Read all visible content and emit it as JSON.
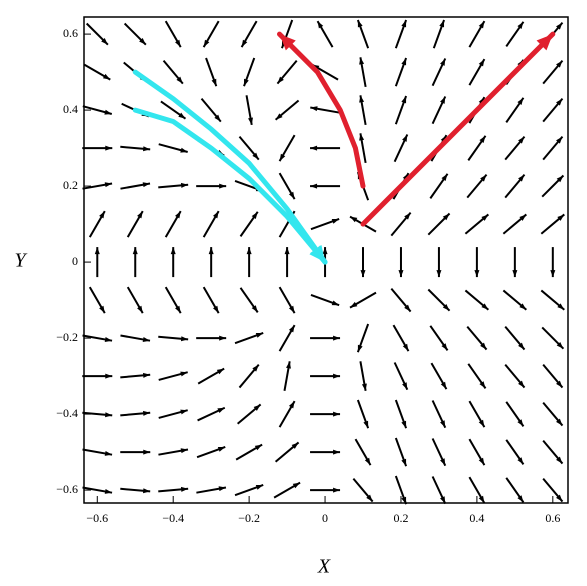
{
  "chart_data": {
    "type": "quiver",
    "xlabel": "X",
    "ylabel": "Y",
    "xlim": [
      -0.635,
      0.64
    ],
    "ylim": [
      -0.634,
      0.645
    ],
    "xticks": [
      {
        "value": -0.6,
        "label": "−0.6"
      },
      {
        "value": -0.4,
        "label": "−0.4"
      },
      {
        "value": -0.2,
        "label": "−0.2"
      },
      0,
      0.2,
      0.4,
      0.6
    ],
    "yticks": [
      {
        "value": -0.6,
        "label": "−0.6"
      },
      {
        "value": -0.4,
        "label": "−0.4"
      },
      {
        "value": -0.2,
        "label": "−0.2"
      },
      0,
      0.2,
      0.4,
      0.6
    ],
    "arrow_color": "#000000",
    "x": [
      -0.6,
      -0.5,
      -0.4,
      -0.3,
      -0.2,
      -0.1,
      0,
      0.1,
      0.2,
      0.3,
      0.4,
      0.5,
      0.6
    ],
    "y": [
      0.6,
      0.5,
      0.4,
      0.3,
      0.2,
      0.1,
      0,
      -0.1,
      -0.2,
      -0.3,
      -0.4,
      -0.5,
      -0.6
    ],
    "angles": [
      [
        -45,
        -45,
        -60,
        -120,
        -120,
        -110,
        120,
        110,
        70,
        70,
        60,
        55,
        50
      ],
      [
        -30,
        -40,
        -50,
        -70,
        -110,
        -130,
        150,
        100,
        70,
        65,
        60,
        55,
        50
      ],
      [
        -15,
        -25,
        -35,
        -50,
        -80,
        -140,
        170,
        100,
        70,
        65,
        60,
        55,
        50
      ],
      [
        0,
        -5,
        -15,
        -30,
        -50,
        -120,
        180,
        100,
        65,
        60,
        55,
        50,
        50
      ],
      [
        10,
        10,
        5,
        0,
        -20,
        -60,
        180,
        110,
        60,
        55,
        50,
        50,
        45
      ],
      [
        60,
        60,
        60,
        60,
        55,
        60,
        20,
        150,
        50,
        45,
        40,
        40,
        40
      ],
      [
        90,
        90,
        90,
        90,
        90,
        90,
        90,
        -90,
        -90,
        -90,
        -90,
        -90,
        -90
      ],
      [
        -60,
        -60,
        -60,
        -60,
        -55,
        -60,
        -20,
        -150,
        -50,
        -45,
        -40,
        -40,
        -40
      ],
      [
        -10,
        -10,
        -5,
        0,
        20,
        60,
        0,
        -110,
        -60,
        -55,
        -50,
        -50,
        -45
      ],
      [
        0,
        5,
        15,
        30,
        50,
        80,
        0,
        -80,
        -65,
        -60,
        -55,
        -50,
        -50
      ],
      [
        -5,
        5,
        15,
        25,
        40,
        60,
        0,
        -70,
        -70,
        -65,
        -60,
        -55,
        -50
      ],
      [
        -10,
        0,
        10,
        20,
        30,
        40,
        0,
        -60,
        -70,
        -65,
        -60,
        -55,
        -50
      ],
      [
        -10,
        -5,
        5,
        10,
        20,
        30,
        0,
        -50,
        -70,
        -65,
        -60,
        -55,
        -50
      ]
    ],
    "series": [
      {
        "color": "#e0202e",
        "x": [
          0.1,
          0.08,
          0.04,
          -0.02,
          -0.12
        ],
        "y": [
          0.2,
          0.3,
          0.4,
          0.5,
          0.6
        ]
      },
      {
        "color": "#e0202e",
        "x": [
          0.1,
          0.6
        ],
        "y": [
          0.1,
          0.6
        ]
      },
      {
        "color": "#33e6ee",
        "x": [
          -0.5,
          -0.4,
          -0.3,
          -0.2,
          -0.1,
          0
        ],
        "y": [
          0.4,
          0.37,
          0.3,
          0.22,
          0.12,
          0
        ]
      },
      {
        "color": "#33e6ee",
        "x": [
          -0.5,
          -0.4,
          -0.3,
          -0.2,
          -0.1,
          0
        ],
        "y": [
          0.5,
          0.43,
          0.35,
          0.26,
          0.14,
          0
        ]
      }
    ]
  }
}
